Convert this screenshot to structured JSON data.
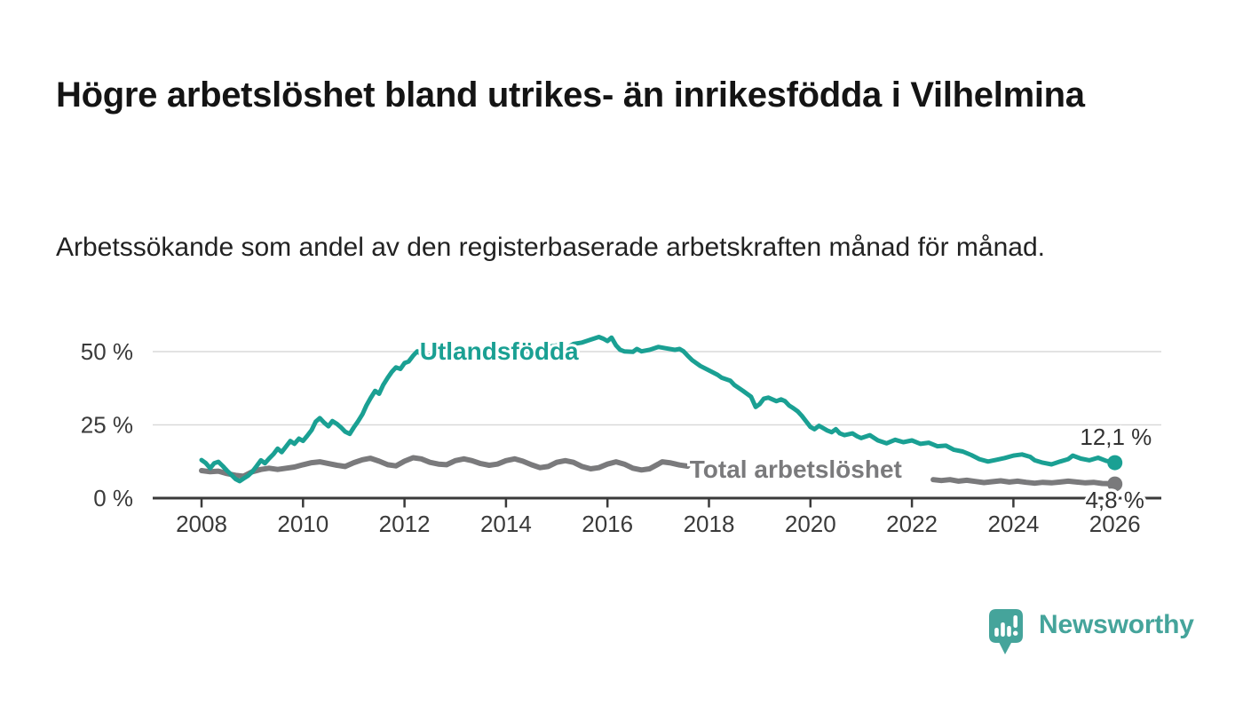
{
  "header": {
    "title": "Högre arbetslöshet bland utrikes- än inrikesfödda i Vilhelmina",
    "subtitle": "Arbetssökande som andel av den registerbaserade arbetskraften månad för månad."
  },
  "footer": {
    "brand": "Newsworthy",
    "brand_color": "#45a49b",
    "logo_icon": "newsworthy-speech-bubble-bar-chart-icon"
  },
  "chart_data": {
    "type": "line",
    "title": "Högre arbetslöshet bland utrikes- än inrikesfödda i Vilhelmina",
    "subtitle": "Arbetssökande som andel av den registerbaserade arbetskraften månad för månad.",
    "xlabel": "",
    "ylabel": "",
    "unit": "%",
    "legend_position": "direct-labels-on-lines",
    "grid": true,
    "x_axis": {
      "range": [
        2007.0,
        2026.9
      ],
      "ticks": [
        2008,
        2010,
        2012,
        2014,
        2016,
        2018,
        2020,
        2022,
        2024,
        2026
      ],
      "tick_labels": [
        "2008",
        "2010",
        "2012",
        "2014",
        "2016",
        "2018",
        "2020",
        "2022",
        "2024",
        "2026"
      ]
    },
    "y_axis": {
      "range": [
        0,
        57
      ],
      "ticks": [
        0,
        25,
        50
      ],
      "tick_labels": [
        "0 %",
        "25 %",
        "50 %"
      ]
    },
    "style": {
      "teal": "#1aa093",
      "gray": "#7a7a7c",
      "axis_color": "#3a3a3a",
      "grid_color": "#d9d9d9",
      "value_label_color": "#333333",
      "halo_color": "#ffffff"
    },
    "series": [
      {
        "name": "Total arbetslöshet",
        "color_key": "gray",
        "end_value_label": "4,8 %",
        "segments": [
          [
            [
              2008.0,
              9.4
            ],
            [
              2008.17,
              9.0
            ],
            [
              2008.33,
              9.2
            ],
            [
              2008.5,
              8.4
            ],
            [
              2008.67,
              7.8
            ],
            [
              2008.83,
              7.5
            ],
            [
              2009.0,
              9.0
            ],
            [
              2009.17,
              9.8
            ],
            [
              2009.33,
              10.2
            ],
            [
              2009.5,
              9.8
            ],
            [
              2009.67,
              10.2
            ],
            [
              2009.83,
              10.6
            ],
            [
              2010.0,
              11.4
            ],
            [
              2010.17,
              12.1
            ],
            [
              2010.33,
              12.4
            ],
            [
              2010.5,
              11.8
            ],
            [
              2010.67,
              11.2
            ],
            [
              2010.83,
              10.8
            ],
            [
              2011.0,
              12.1
            ],
            [
              2011.17,
              13.1
            ],
            [
              2011.33,
              13.6
            ],
            [
              2011.5,
              12.6
            ],
            [
              2011.67,
              11.4
            ],
            [
              2011.83,
              11.0
            ],
            [
              2012.0,
              12.6
            ],
            [
              2012.17,
              13.8
            ],
            [
              2012.33,
              13.4
            ],
            [
              2012.5,
              12.2
            ],
            [
              2012.67,
              11.6
            ],
            [
              2012.83,
              11.4
            ],
            [
              2013.0,
              12.8
            ],
            [
              2013.17,
              13.4
            ],
            [
              2013.33,
              12.8
            ],
            [
              2013.5,
              11.8
            ],
            [
              2013.67,
              11.2
            ],
            [
              2013.83,
              11.6
            ],
            [
              2014.0,
              12.8
            ],
            [
              2014.17,
              13.4
            ],
            [
              2014.33,
              12.6
            ],
            [
              2014.5,
              11.4
            ],
            [
              2014.67,
              10.4
            ],
            [
              2014.83,
              10.8
            ],
            [
              2015.0,
              12.2
            ],
            [
              2015.17,
              12.8
            ],
            [
              2015.33,
              12.2
            ],
            [
              2015.5,
              10.8
            ],
            [
              2015.67,
              10.0
            ],
            [
              2015.83,
              10.4
            ],
            [
              2016.0,
              11.6
            ],
            [
              2016.17,
              12.4
            ],
            [
              2016.33,
              11.6
            ],
            [
              2016.5,
              10.2
            ],
            [
              2016.67,
              9.6
            ],
            [
              2016.83,
              10.0
            ],
            [
              2017.0,
              11.6
            ],
            [
              2017.08,
              12.4
            ],
            [
              2017.25,
              12.0
            ],
            [
              2017.42,
              11.3
            ],
            [
              2017.58,
              10.9
            ]
          ],
          [
            [
              2022.42,
              6.3
            ],
            [
              2022.58,
              6.0
            ],
            [
              2022.75,
              6.3
            ],
            [
              2022.92,
              5.8
            ],
            [
              2023.08,
              6.1
            ],
            [
              2023.25,
              5.7
            ],
            [
              2023.42,
              5.3
            ],
            [
              2023.58,
              5.6
            ],
            [
              2023.75,
              5.9
            ],
            [
              2023.92,
              5.5
            ],
            [
              2024.08,
              5.8
            ],
            [
              2024.25,
              5.4
            ],
            [
              2024.42,
              5.1
            ],
            [
              2024.58,
              5.4
            ],
            [
              2024.75,
              5.2
            ],
            [
              2024.92,
              5.5
            ],
            [
              2025.08,
              5.8
            ],
            [
              2025.25,
              5.5
            ],
            [
              2025.42,
              5.2
            ],
            [
              2025.58,
              5.4
            ],
            [
              2025.75,
              5.0
            ],
            [
              2025.92,
              4.9
            ],
            [
              2026.0,
              4.8
            ]
          ]
        ]
      },
      {
        "name": "Utlandsfödda",
        "color_key": "teal",
        "end_value_label": "12,1 %",
        "segments": [
          [
            [
              2008.0,
              13.0
            ],
            [
              2008.08,
              12.0
            ],
            [
              2008.17,
              10.2
            ],
            [
              2008.25,
              11.9
            ],
            [
              2008.33,
              12.4
            ],
            [
              2008.42,
              10.9
            ],
            [
              2008.5,
              9.4
            ],
            [
              2008.58,
              8.1
            ],
            [
              2008.67,
              6.5
            ],
            [
              2008.75,
              5.8
            ],
            [
              2008.83,
              6.7
            ],
            [
              2008.92,
              7.7
            ],
            [
              2009.0,
              9.0
            ],
            [
              2009.08,
              10.8
            ],
            [
              2009.17,
              12.9
            ],
            [
              2009.25,
              11.9
            ],
            [
              2009.33,
              13.5
            ],
            [
              2009.42,
              15.1
            ],
            [
              2009.5,
              16.9
            ],
            [
              2009.58,
              15.7
            ],
            [
              2009.67,
              17.7
            ],
            [
              2009.75,
              19.5
            ],
            [
              2009.83,
              18.5
            ],
            [
              2009.92,
              20.3
            ],
            [
              2010.0,
              19.5
            ],
            [
              2010.08,
              21.2
            ],
            [
              2010.17,
              23.2
            ],
            [
              2010.25,
              26.1
            ],
            [
              2010.33,
              27.3
            ],
            [
              2010.42,
              25.7
            ],
            [
              2010.5,
              24.5
            ],
            [
              2010.58,
              26.3
            ],
            [
              2010.67,
              25.3
            ],
            [
              2010.75,
              24.1
            ],
            [
              2010.83,
              22.7
            ],
            [
              2010.92,
              21.9
            ],
            [
              2011.0,
              24.1
            ],
            [
              2011.08,
              26.1
            ],
            [
              2011.17,
              28.6
            ],
            [
              2011.25,
              31.6
            ],
            [
              2011.33,
              34.1
            ],
            [
              2011.42,
              36.6
            ],
            [
              2011.5,
              35.6
            ],
            [
              2011.58,
              38.6
            ],
            [
              2011.67,
              41.1
            ],
            [
              2011.75,
              43.1
            ],
            [
              2011.83,
              44.6
            ],
            [
              2011.92,
              44.1
            ],
            [
              2012.0,
              46.1
            ],
            [
              2012.08,
              46.6
            ],
            [
              2012.17,
              48.6
            ],
            [
              2012.25,
              50.1
            ],
            [
              2012.33,
              49.1
            ],
            [
              2012.42,
              47.6
            ],
            [
              2012.5,
              48.6
            ],
            [
              2012.67,
              50.1
            ],
            [
              2012.83,
              49.1
            ],
            [
              2013.0,
              50.6
            ],
            [
              2013.17,
              49.6
            ],
            [
              2013.33,
              50.6
            ],
            [
              2013.5,
              49.1
            ],
            [
              2013.67,
              50.1
            ],
            [
              2013.83,
              51.1
            ],
            [
              2014.0,
              50.1
            ],
            [
              2014.17,
              51.6
            ],
            [
              2014.33,
              50.6
            ],
            [
              2014.5,
              49.6
            ],
            [
              2014.67,
              50.6
            ],
            [
              2014.83,
              51.6
            ],
            [
              2015.0,
              52.1
            ],
            [
              2015.17,
              51.1
            ],
            [
              2015.33,
              52.6
            ],
            [
              2015.5,
              53.1
            ],
            [
              2015.67,
              54.1
            ],
            [
              2015.83,
              55.0
            ],
            [
              2015.92,
              54.4
            ],
            [
              2016.0,
              53.6
            ],
            [
              2016.08,
              54.8
            ],
            [
              2016.17,
              52.1
            ],
            [
              2016.25,
              50.6
            ],
            [
              2016.33,
              50.1
            ],
            [
              2016.5,
              49.9
            ],
            [
              2016.58,
              50.9
            ],
            [
              2016.67,
              50.1
            ],
            [
              2016.83,
              50.6
            ],
            [
              2017.0,
              51.6
            ],
            [
              2017.17,
              51.1
            ],
            [
              2017.33,
              50.6
            ],
            [
              2017.42,
              50.9
            ],
            [
              2017.5,
              50.1
            ],
            [
              2017.58,
              48.6
            ],
            [
              2017.67,
              47.1
            ],
            [
              2017.83,
              45.1
            ],
            [
              2018.0,
              43.6
            ],
            [
              2018.17,
              42.1
            ],
            [
              2018.25,
              41.1
            ],
            [
              2018.42,
              40.1
            ],
            [
              2018.5,
              38.6
            ],
            [
              2018.67,
              36.6
            ],
            [
              2018.83,
              34.6
            ],
            [
              2018.92,
              31.1
            ],
            [
              2019.0,
              32.1
            ],
            [
              2019.08,
              33.9
            ],
            [
              2019.17,
              34.3
            ],
            [
              2019.33,
              33.1
            ],
            [
              2019.42,
              33.7
            ],
            [
              2019.5,
              33.1
            ],
            [
              2019.58,
              31.6
            ],
            [
              2019.67,
              30.6
            ],
            [
              2019.75,
              29.6
            ],
            [
              2019.83,
              28.1
            ],
            [
              2019.92,
              26.1
            ],
            [
              2020.0,
              24.3
            ],
            [
              2020.08,
              23.5
            ],
            [
              2020.17,
              24.7
            ],
            [
              2020.33,
              23.1
            ],
            [
              2020.42,
              22.5
            ],
            [
              2020.5,
              23.5
            ],
            [
              2020.58,
              22.1
            ],
            [
              2020.67,
              21.5
            ],
            [
              2020.83,
              22.1
            ],
            [
              2020.92,
              21.1
            ],
            [
              2021.0,
              20.5
            ],
            [
              2021.17,
              21.5
            ],
            [
              2021.33,
              19.7
            ],
            [
              2021.5,
              18.7
            ],
            [
              2021.67,
              19.9
            ],
            [
              2021.83,
              19.1
            ],
            [
              2022.0,
              19.7
            ],
            [
              2022.17,
              18.5
            ],
            [
              2022.33,
              18.9
            ],
            [
              2022.5,
              17.7
            ],
            [
              2022.67,
              17.9
            ],
            [
              2022.83,
              16.5
            ],
            [
              2023.0,
              15.9
            ],
            [
              2023.17,
              14.7
            ],
            [
              2023.33,
              13.3
            ],
            [
              2023.5,
              12.5
            ],
            [
              2023.67,
              13.1
            ],
            [
              2023.83,
              13.7
            ],
            [
              2024.0,
              14.5
            ],
            [
              2024.17,
              14.9
            ],
            [
              2024.33,
              14.1
            ],
            [
              2024.42,
              12.9
            ],
            [
              2024.58,
              12.1
            ],
            [
              2024.75,
              11.5
            ],
            [
              2024.92,
              12.5
            ],
            [
              2025.08,
              13.3
            ],
            [
              2025.17,
              14.5
            ],
            [
              2025.33,
              13.5
            ],
            [
              2025.5,
              12.9
            ],
            [
              2025.67,
              13.8
            ],
            [
              2025.83,
              12.7
            ],
            [
              2026.0,
              12.1
            ]
          ]
        ]
      }
    ],
    "series_labels": [
      {
        "text": "Utlandsfödda",
        "year": 2012.3,
        "value": 47.2,
        "color_key": "teal",
        "anchor": "start"
      },
      {
        "text": "Total arbetslöshet",
        "year": 2017.62,
        "value": 7.0,
        "color_key": "gray",
        "anchor": "start"
      }
    ],
    "end_labels": [
      {
        "text": "12,1 %",
        "year": 2026.02,
        "value": 18.2,
        "anchor": "middle"
      },
      {
        "text": "4,8 %",
        "year": 2026.0,
        "value": -3.4,
        "anchor": "middle"
      }
    ]
  }
}
